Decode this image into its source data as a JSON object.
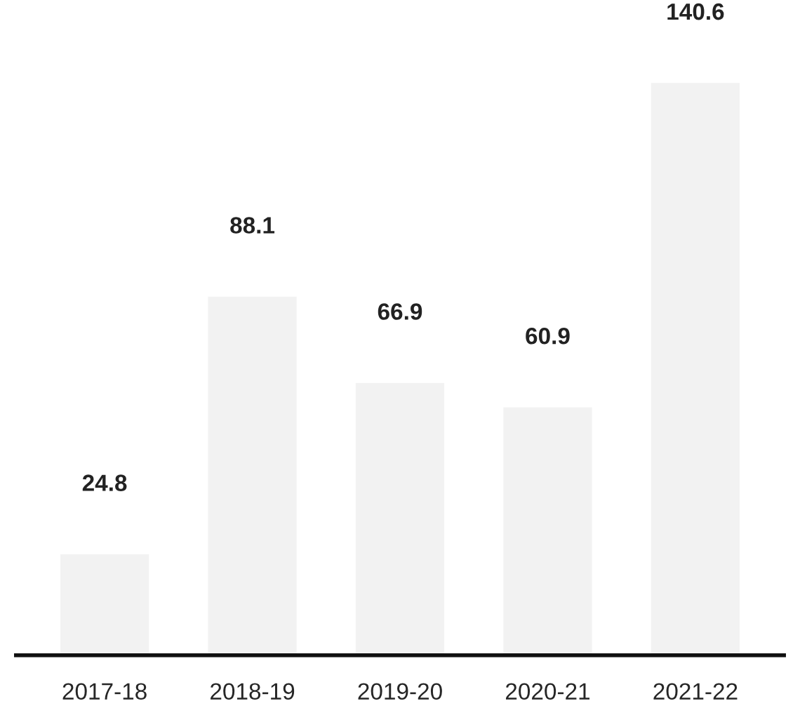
{
  "chart_data": {
    "type": "bar",
    "categories": [
      "2017-18",
      "2018-19",
      "2019-20",
      "2020-21",
      "2021-22"
    ],
    "values": [
      24.8,
      88.1,
      66.9,
      60.9,
      140.6
    ],
    "color": "#f2f2f2",
    "data_labels": true,
    "tick_labels": "x",
    "grid": false,
    "legend": false
  }
}
